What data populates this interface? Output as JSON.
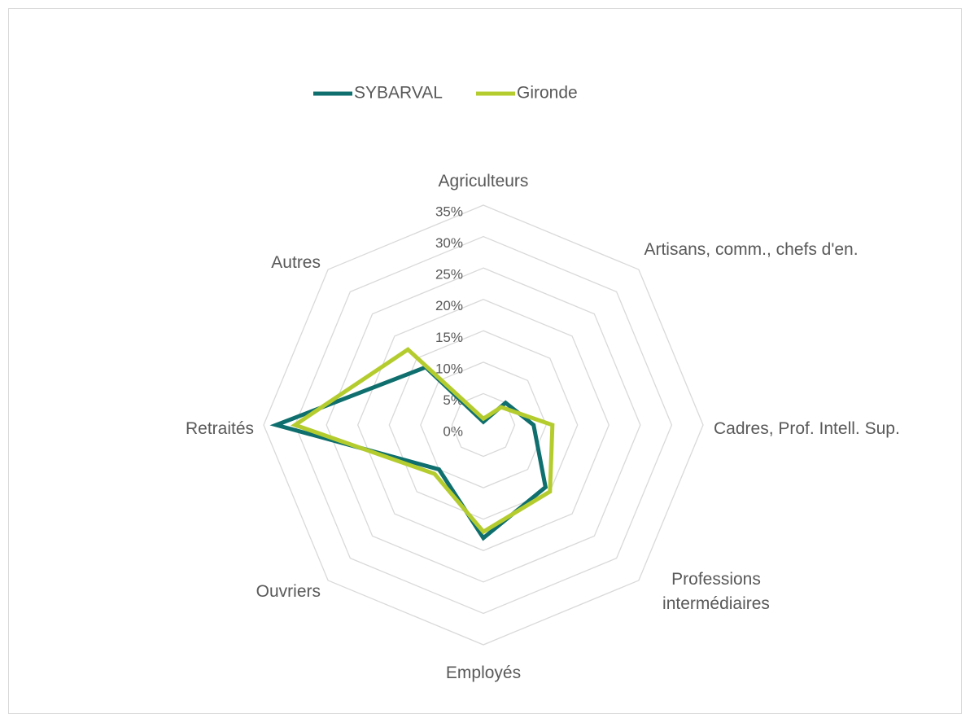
{
  "chart_data": {
    "type": "radar",
    "categories": [
      "Agriculteurs",
      "Artisans, comm., chefs d'en.",
      "Cadres, Prof. Intell. Sup.",
      "Professions intermédiaires",
      "Employés",
      "Ouvriers",
      "Retraités",
      "Autres"
    ],
    "series": [
      {
        "name": "SYBARVAL",
        "color": "#0f6e6e",
        "values": [
          0.5,
          5,
          8,
          14,
          18,
          10,
          33,
          13
        ]
      },
      {
        "name": "Gironde",
        "color": "#b5cc2e",
        "values": [
          1,
          4,
          11,
          15,
          17,
          11,
          30,
          17
        ]
      }
    ],
    "ylim": [
      0,
      35
    ],
    "yticks": [
      {
        "value": 0,
        "label": "0%"
      },
      {
        "value": 5,
        "label": "5%"
      },
      {
        "value": 10,
        "label": "10%"
      },
      {
        "value": 15,
        "label": "15%"
      },
      {
        "value": 20,
        "label": "20%"
      },
      {
        "value": 25,
        "label": "25%"
      },
      {
        "value": 30,
        "label": "30%"
      },
      {
        "value": 35,
        "label": "35%"
      }
    ],
    "grid": true,
    "legend": "top"
  }
}
